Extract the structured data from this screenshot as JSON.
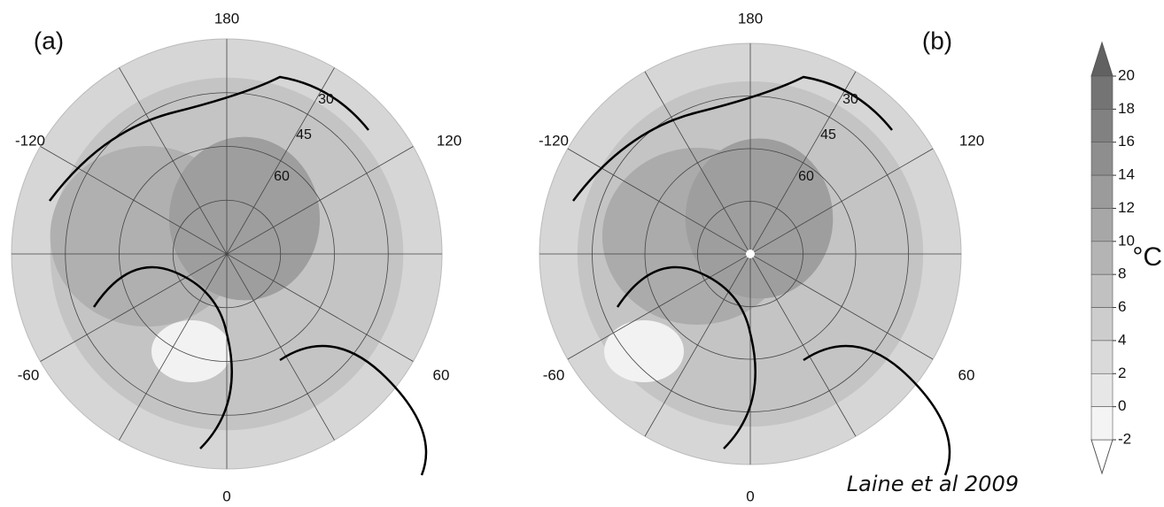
{
  "panels": [
    {
      "label": "(a)",
      "lon_labels": [
        "180",
        "-120",
        "120",
        "-60",
        "60",
        "0"
      ],
      "lat_labels": [
        "30",
        "45",
        "60"
      ]
    },
    {
      "label": "(b)",
      "lon_labels": [
        "180",
        "-120",
        "120",
        "-60",
        "60",
        "0"
      ],
      "lat_labels": [
        "30",
        "45",
        "60"
      ]
    }
  ],
  "colorbar": {
    "ticks": [
      20,
      18,
      16,
      14,
      12,
      10,
      8,
      6,
      4,
      2,
      0,
      -2
    ],
    "unit": "°C"
  },
  "credit": "Laine et al 2009"
}
